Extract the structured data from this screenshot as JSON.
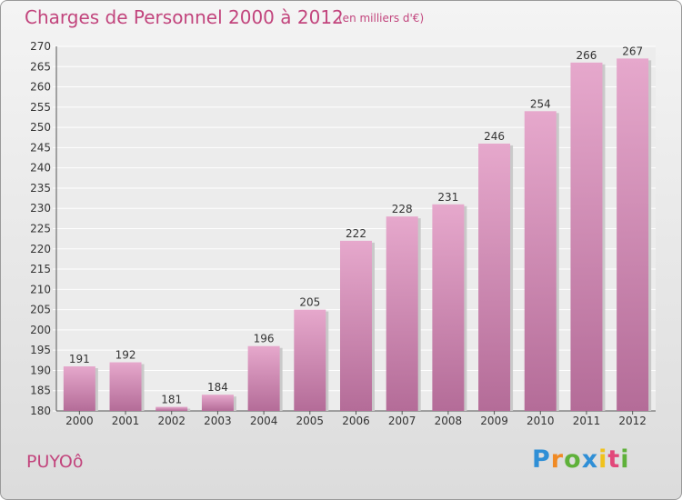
{
  "title": "Charges de Personnel 2000 à 2012",
  "subtitle": "(en milliers d'€)",
  "city": "PUYOô",
  "logo": "Proxiti",
  "colors": {
    "accent": "#c2457d",
    "bar_top": "#e6a8cc",
    "bar_bottom": "#b46c98"
  },
  "chart_data": {
    "type": "bar",
    "categories": [
      "2000",
      "2001",
      "2002",
      "2003",
      "2004",
      "2005",
      "2006",
      "2007",
      "2008",
      "2009",
      "2010",
      "2011",
      "2012"
    ],
    "values": [
      191,
      192,
      181,
      184,
      196,
      205,
      222,
      228,
      231,
      246,
      254,
      266,
      267
    ],
    "ylim": [
      180,
      270
    ],
    "yticks": [
      180,
      185,
      190,
      195,
      200,
      205,
      210,
      215,
      220,
      225,
      230,
      235,
      240,
      245,
      250,
      255,
      260,
      265,
      270
    ],
    "grid": true
  }
}
